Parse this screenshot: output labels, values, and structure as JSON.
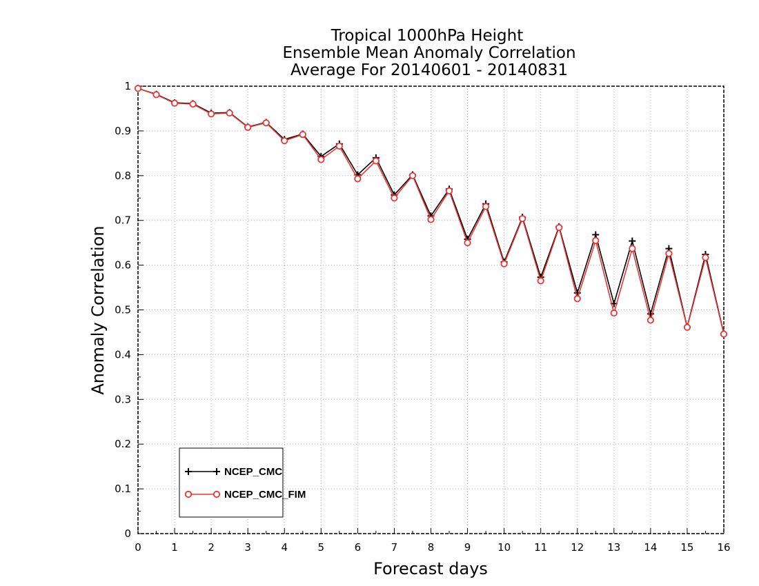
{
  "chart_data": {
    "type": "line",
    "title_lines": [
      "Tropical 1000hPa Height",
      "Ensemble Mean Anomaly Correlation",
      "Average For 20140601 - 20140831"
    ],
    "xlabel": "Forecast days",
    "ylabel": "Anomaly Correlation",
    "xlim": [
      0,
      16
    ],
    "ylim": [
      0,
      1
    ],
    "xticks": [
      0,
      1,
      2,
      3,
      4,
      5,
      6,
      7,
      8,
      9,
      10,
      11,
      12,
      13,
      14,
      15,
      16
    ],
    "yticks": [
      0,
      0.1,
      0.2,
      0.3,
      0.4,
      0.5,
      0.6,
      0.7,
      0.8,
      0.9,
      1
    ],
    "ytick_labels": [
      "0",
      "0.1",
      "0.2",
      "0.3",
      "0.4",
      "0.5",
      "0.6",
      "0.7",
      "0.8",
      "0.9",
      "1"
    ],
    "grid": true,
    "legend_position": "bottom-left",
    "x": [
      0,
      0.5,
      1,
      1.5,
      2,
      2.5,
      3,
      3.5,
      4,
      4.5,
      5,
      5.5,
      6,
      6.5,
      7,
      7.5,
      8,
      8.5,
      9,
      9.5,
      10,
      10.5,
      11,
      11.5,
      12,
      12.5,
      13,
      13.5,
      14,
      14.5,
      15,
      15.5,
      16
    ],
    "series": [
      {
        "name": "NCEP_CMC",
        "color": "#000000",
        "marker": "plus",
        "values": [
          0.995,
          0.982,
          0.963,
          0.961,
          0.94,
          0.941,
          0.909,
          0.919,
          0.881,
          0.893,
          0.843,
          0.871,
          0.802,
          0.84,
          0.757,
          0.802,
          0.71,
          0.77,
          0.658,
          0.737,
          0.607,
          0.707,
          0.573,
          0.686,
          0.538,
          0.668,
          0.514,
          0.654,
          0.491,
          0.637,
          0.462,
          0.624,
          0.447
        ]
      },
      {
        "name": "NCEP_CMC_FIM",
        "color": "#ee3333",
        "marker": "circle",
        "values": [
          0.995,
          0.981,
          0.962,
          0.96,
          0.938,
          0.94,
          0.908,
          0.918,
          0.878,
          0.892,
          0.836,
          0.866,
          0.793,
          0.833,
          0.75,
          0.8,
          0.702,
          0.766,
          0.65,
          0.731,
          0.603,
          0.704,
          0.565,
          0.684,
          0.525,
          0.655,
          0.493,
          0.637,
          0.477,
          0.626,
          0.461,
          0.617,
          0.446
        ]
      }
    ]
  }
}
